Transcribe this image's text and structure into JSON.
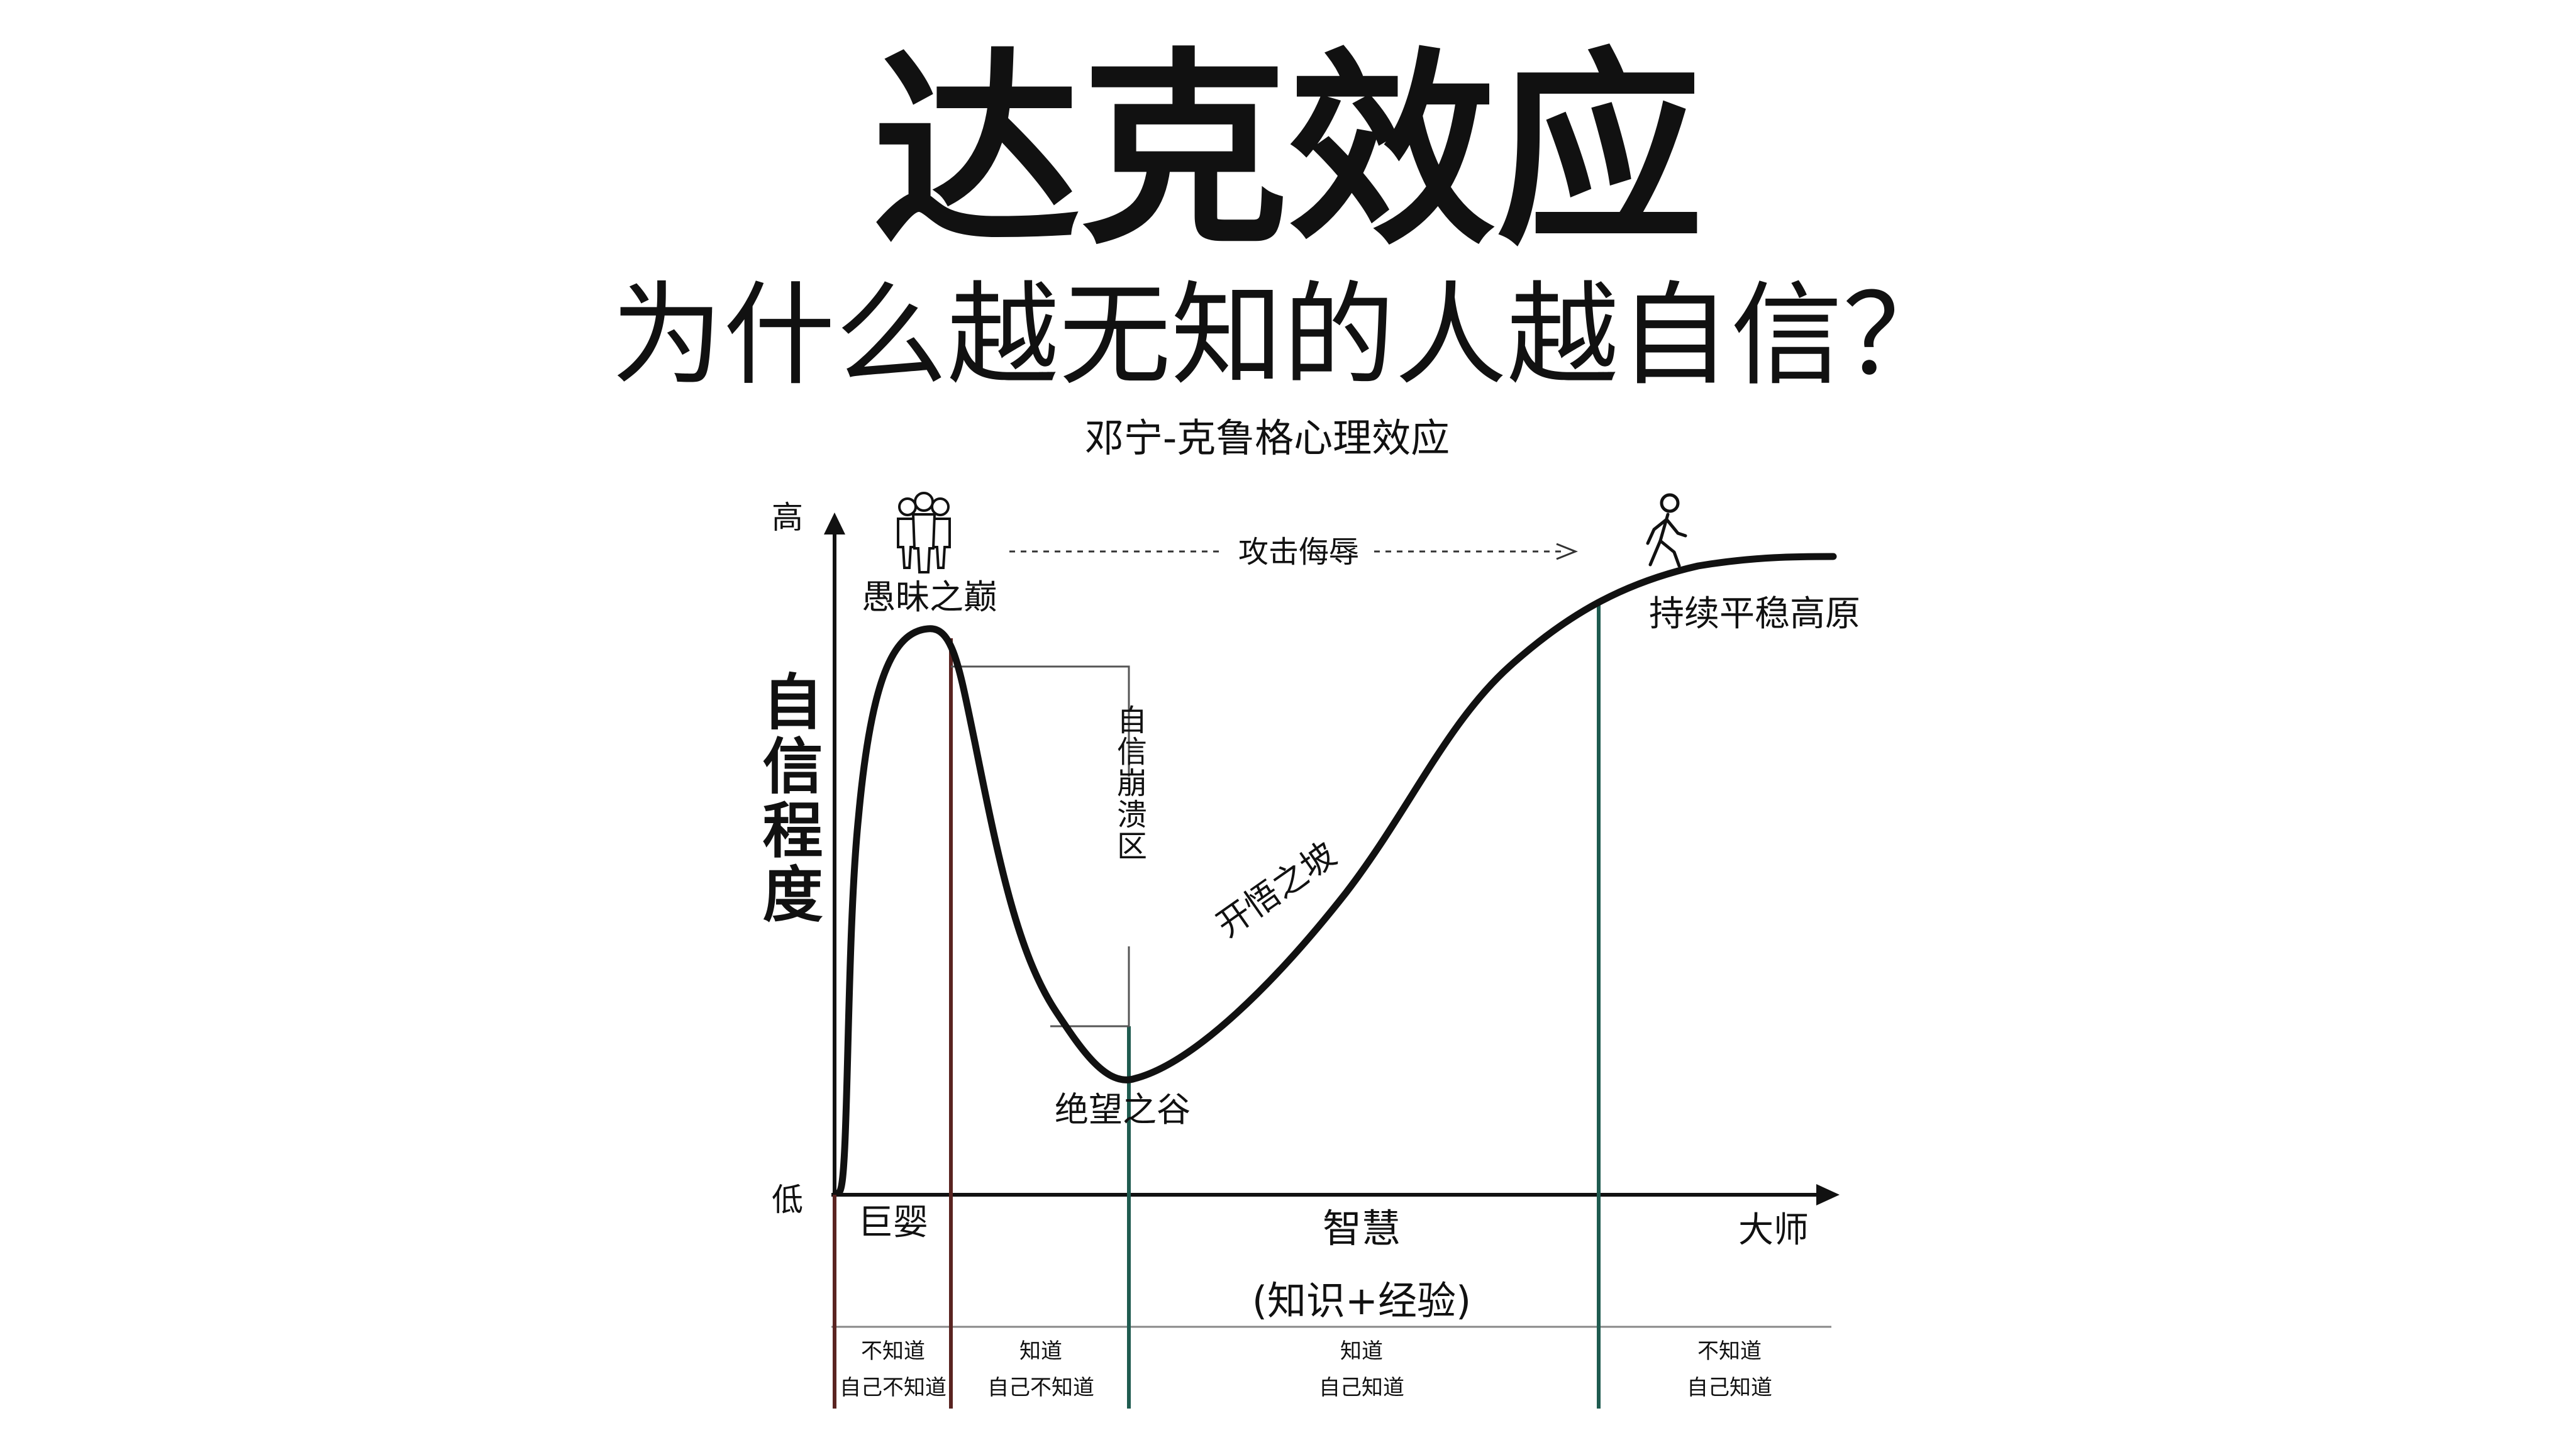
{
  "title": "达克效应",
  "subtitle": "为什么越无知的人越自信？",
  "caption": "邓宁-克鲁格心理效应",
  "y_axis": {
    "label": "自信程度",
    "high": "高",
    "low": "低"
  },
  "x_axis": {
    "start": "巨婴",
    "middle": "智慧",
    "middle_note": "(知识+经验)",
    "end": "大师"
  },
  "annotations": {
    "peak": "愚昧之巅",
    "valley": "绝望之谷",
    "slope": "开悟之坡",
    "plateau": "持续平稳高原",
    "collapse": "自信崩溃区",
    "arrow_label": "攻击侮辱"
  },
  "icons": {
    "peak_icon": "group-of-people-icon",
    "plateau_icon": "walking-person-icon"
  },
  "stages": [
    {
      "line1": "不知道",
      "line2": "自己不知道"
    },
    {
      "line1": "知道",
      "line2": "自己不知道"
    },
    {
      "line1": "知道",
      "line2": "自己知道"
    },
    {
      "line1": "不知道",
      "line2": "自己知道"
    }
  ],
  "colors": {
    "ink": "#111111",
    "divider_red": "#5a2421",
    "divider_green": "#1f5b50",
    "guide_gray": "#555555"
  }
}
